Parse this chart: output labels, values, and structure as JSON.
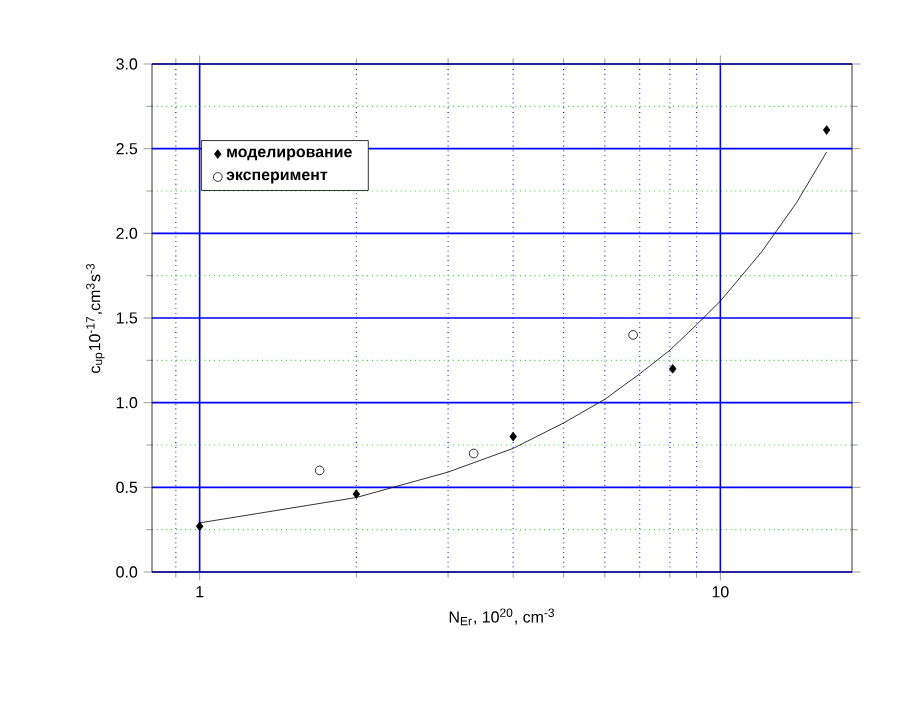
{
  "chart_data": {
    "type": "scatter",
    "xlabel": "N$_{Er}$, 10$^{20}$, cm$^{-3}$",
    "ylabel": "c$_{up}$10$^{-17}$,cm$^{3}$s$^{-3}$",
    "series": [
      {
        "name": "моделирование",
        "color": "#000000",
        "marker": "diamond",
        "x": [
          1,
          2,
          4,
          8.1,
          16
        ],
        "values": [
          0.27,
          0.46,
          0.8,
          1.2,
          2.61
        ]
      },
      {
        "name": "эксперимент",
        "color": "#000000",
        "marker": "circle",
        "x": [
          1.7,
          3.36,
          6.8
        ],
        "values": [
          0.6,
          0.7,
          1.4
        ]
      },
      {
        "type": "line",
        "color": "#000000",
        "marker": "none",
        "x": [
          1,
          2,
          3,
          4,
          5,
          6,
          7,
          8,
          9,
          10,
          12,
          14,
          16
        ],
        "values": [
          0.29,
          0.44,
          0.59,
          0.73,
          0.88,
          1.02,
          1.17,
          1.31,
          1.46,
          1.6,
          1.89,
          2.18,
          2.48
        ]
      }
    ],
    "log": "x",
    "xlim": [
      0.81,
      17.9
    ],
    "xticks": [
      {
        "value": 0.9,
        "label": null
      },
      1,
      {
        "value": 2,
        "label": null
      },
      {
        "value": 3,
        "label": null
      },
      {
        "value": 4,
        "label": null
      },
      {
        "value": 5,
        "label": null
      },
      {
        "value": 6,
        "label": null
      },
      {
        "value": 7,
        "label": null
      },
      {
        "value": 8,
        "label": null
      },
      {
        "value": 9,
        "label": null
      },
      10
    ],
    "ylim": [
      0,
      3
    ],
    "yticks": [
      {
        "value": 0,
        "label": "0.0"
      },
      {
        "value": 0.25,
        "label": null
      },
      {
        "value": 0.5,
        "label": "0.5"
      },
      {
        "value": 0.75,
        "label": null
      },
      {
        "value": 1,
        "label": "1.0"
      },
      {
        "value": 1.25,
        "label": null
      },
      {
        "value": 1.5,
        "label": "1.5"
      },
      {
        "value": 1.75,
        "label": null
      },
      {
        "value": 2,
        "label": "2.0"
      },
      {
        "value": 2.25,
        "label": null
      },
      {
        "value": 2.5,
        "label": "2.5"
      },
      {
        "value": 2.75,
        "label": null
      },
      {
        "value": 3,
        "label": "3.0"
      }
    ],
    "grid": true,
    "legend": "top left"
  }
}
